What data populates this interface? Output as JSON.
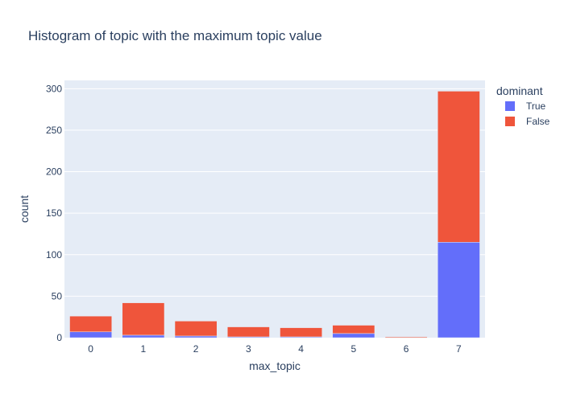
{
  "chart_data": {
    "type": "bar",
    "stacked": true,
    "title": "Histogram of topic with the maximum topic value",
    "xlabel": "max_topic",
    "ylabel": "count",
    "categories": [
      "0",
      "1",
      "2",
      "3",
      "4",
      "5",
      "6",
      "7"
    ],
    "series": [
      {
        "name": "True",
        "color": "#636efa",
        "values": [
          7,
          3,
          2,
          1,
          1,
          5,
          0,
          115
        ]
      },
      {
        "name": "False",
        "color": "#ef553b",
        "values": [
          19,
          39,
          18,
          12,
          11,
          10,
          1,
          182
        ]
      }
    ],
    "ylim": [
      0,
      310
    ],
    "yticks": [
      0,
      50,
      100,
      150,
      200,
      250,
      300
    ],
    "grid": true,
    "legend": {
      "title": "dominant",
      "placement": "right"
    },
    "colors": {
      "plot_bg": "#e5ecf6",
      "grid": "#ffffff",
      "text": "#2a3f5f"
    }
  }
}
